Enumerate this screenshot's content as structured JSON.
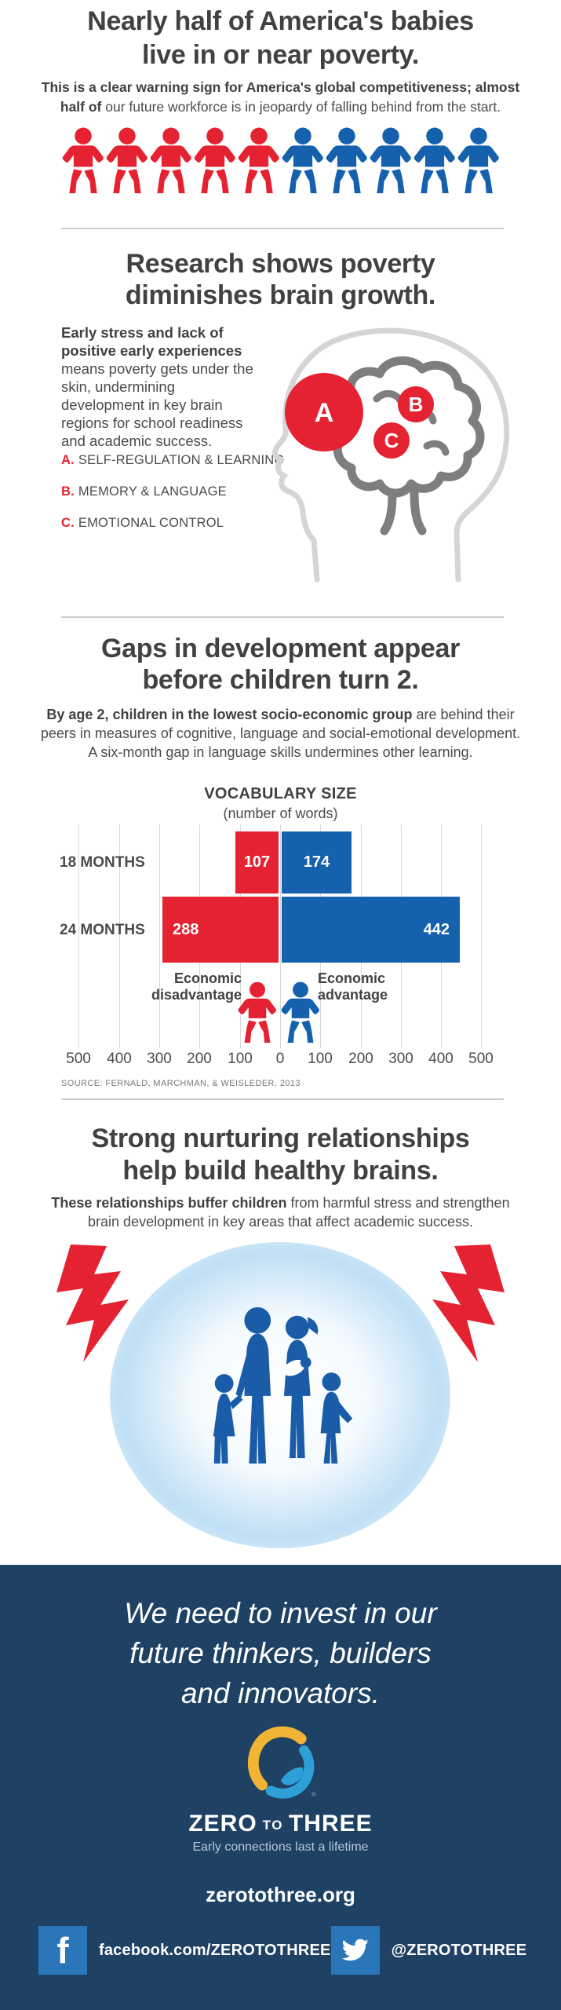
{
  "page": {
    "background": "#ffffff",
    "accent_red": "#e52231",
    "accent_blue": "#1561ae",
    "navy": "#1e4164"
  },
  "section1": {
    "title": "Nearly half of America's babies\nlive in or near poverty.",
    "subtitle_bold": "This is a clear warning sign for America's global competitiveness; almost half of",
    "subtitle_rest": " our future workforce is in jeopardy of falling behind from the start.",
    "babies": {
      "red_count": 5,
      "blue_count": 5
    }
  },
  "section2": {
    "title": "Research shows poverty\ndiminishes brain growth.",
    "body_bold": "Early stress and lack of positive early experiences",
    "body_rest": " means poverty gets under the skin, undermining development in key brain regions for school readiness and academic success.",
    "legend": [
      {
        "letter": "A.",
        "label": "SELF-REGULATION & LEARNING"
      },
      {
        "letter": "B.",
        "label": "MEMORY & LANGUAGE"
      },
      {
        "letter": "C.",
        "label": "EMOTIONAL CONTROL"
      }
    ],
    "brain_markers": [
      "A",
      "B",
      "C"
    ]
  },
  "section3": {
    "title": "Gaps in development appear\nbefore children turn 2.",
    "subtitle_bold": "By age 2, children in the lowest socio-economic group",
    "subtitle_rest": " are behind their peers in measures of cognitive, language and social-emotional development. A six-month gap in language skills undermines other learning.",
    "source": "SOURCE: FERNALD, MARCHMAN, & WEISLEDER, 2013"
  },
  "chart_data": {
    "type": "bar",
    "orientation": "horizontal-diverging",
    "title": "VOCABULARY SIZE",
    "subtitle": "(number of words)",
    "categories": [
      "18 MONTHS",
      "24 MONTHS"
    ],
    "series": [
      {
        "name": "Economic disadvantage",
        "color": "#e52231",
        "values": [
          107,
          288
        ]
      },
      {
        "name": "Economic advantage",
        "color": "#1561ae",
        "values": [
          174,
          442
        ]
      }
    ],
    "xlim": [
      -500,
      500
    ],
    "tick_interval": 100,
    "axis_ticks": [
      "500",
      "400",
      "300",
      "200",
      "100",
      "0",
      "100",
      "200",
      "300",
      "400",
      "500"
    ],
    "grid": true,
    "legend_position": "below-center"
  },
  "section4": {
    "title": "Strong nurturing relationships\nhelp build healthy brains.",
    "subtitle_bold": "These relationships buffer children",
    "subtitle_rest": " from harmful stress and strengthen brain development in key areas that affect academic success."
  },
  "footer": {
    "quote": "We need to invest in our\nfuture thinkers, builders\nand innovators.",
    "logo": {
      "wordmark_zero": "ZERO",
      "wordmark_to": "TO",
      "wordmark_three": "THREE",
      "tagline": "Early connections last a lifetime"
    },
    "url": "zerotothree.org",
    "social": [
      {
        "icon": "facebook-icon",
        "label": "facebook.com/ZEROTOTHREE"
      },
      {
        "icon": "twitter-icon",
        "label": "@ZEROTOTHREE"
      }
    ]
  }
}
